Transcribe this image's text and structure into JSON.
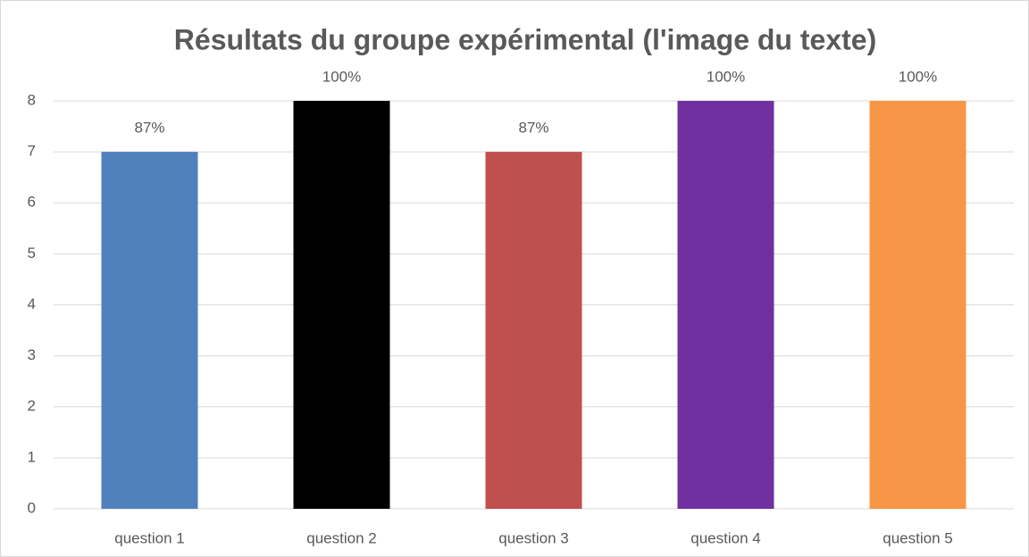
{
  "chart_data": {
    "type": "bar",
    "title": "Résultats du groupe expérimental (l'image du texte)",
    "categories": [
      "question 1",
      "question 2",
      "question 3",
      "question 4",
      "question 5"
    ],
    "values": [
      7,
      8,
      7,
      8,
      8
    ],
    "value_labels": [
      "87%",
      "100%",
      "87%",
      "100%",
      "100%"
    ],
    "colors": [
      "#4f81bd",
      "#000000",
      "#c0504d",
      "#7030a0",
      "#f79646"
    ],
    "ylim": [
      0,
      8
    ],
    "yticks": [
      0,
      1,
      2,
      3,
      4,
      5,
      6,
      7,
      8
    ],
    "grid": true
  }
}
